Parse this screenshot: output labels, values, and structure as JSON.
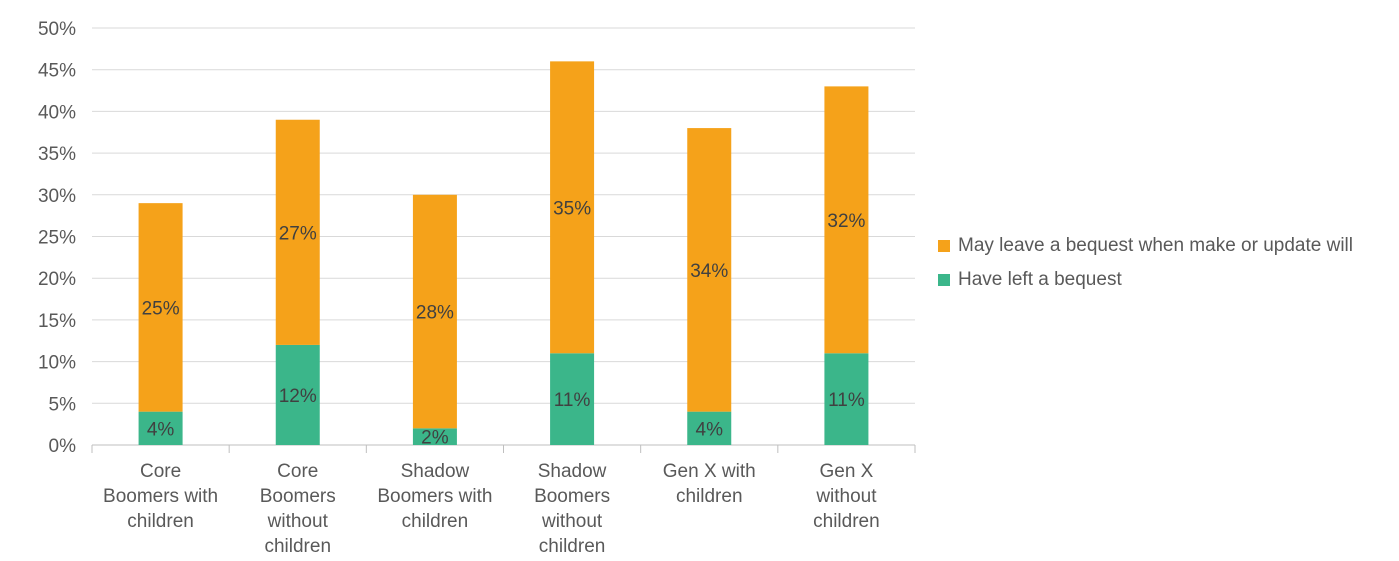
{
  "chart_data": {
    "type": "bar",
    "stacked": true,
    "categories": [
      "Core Boomers with children",
      "Core Boomers without children",
      "Shadow Boomers with children",
      "Shadow Boomers without children",
      "Gen X with children",
      "Gen X without children"
    ],
    "category_lines": [
      [
        "Core",
        "Boomers with",
        "children"
      ],
      [
        "Core",
        "Boomers",
        "without",
        "children"
      ],
      [
        "Shadow",
        "Boomers with",
        "children"
      ],
      [
        "Shadow",
        "Boomers",
        "without",
        "children"
      ],
      [
        "Gen X with",
        "children"
      ],
      [
        "Gen X",
        "without",
        "children"
      ]
    ],
    "series": [
      {
        "name": "Have left a bequest",
        "color": "#3BB68A",
        "values": [
          4,
          12,
          2,
          11,
          4,
          11
        ],
        "labels": [
          "4%",
          "12%",
          "2%",
          "11%",
          "4%",
          "11%"
        ]
      },
      {
        "name": "May leave a bequest when make or update will",
        "color": "#F5A21A",
        "values": [
          25,
          27,
          28,
          35,
          34,
          32
        ],
        "labels": [
          "25%",
          "27%",
          "28%",
          "35%",
          "34%",
          "32%"
        ]
      }
    ],
    "ylim": [
      0,
      50
    ],
    "yticks": [
      "0%",
      "5%",
      "10%",
      "15%",
      "20%",
      "25%",
      "30%",
      "35%",
      "40%",
      "45%",
      "50%"
    ],
    "grid": true,
    "legend_position": "right",
    "title": "",
    "xlabel": "",
    "ylabel": ""
  },
  "legend": [
    {
      "label": "May leave a bequest when make or update will",
      "color": "#F5A21A"
    },
    {
      "label": "Have left a bequest",
      "color": "#3BB68A"
    }
  ]
}
